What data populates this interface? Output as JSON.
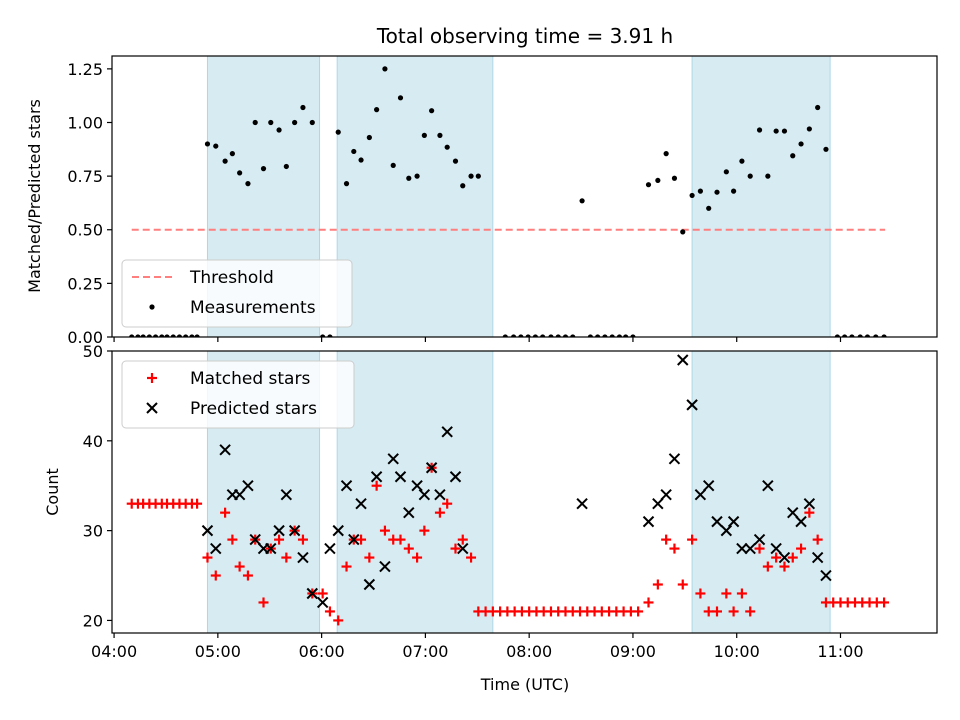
{
  "chart_data": [
    {
      "type": "scatter",
      "title": "Total observing time = 3.91 h",
      "ylabel": "Matched/Predicted stars",
      "xlabel": "",
      "ylim": [
        0,
        1.31
      ],
      "yticks": [
        "0.00",
        "0.25",
        "0.50",
        "0.75",
        "1.00",
        "1.25"
      ],
      "xlim": [
        3.98,
        11.93
      ],
      "x_ticks": [
        4,
        5,
        6,
        7,
        8,
        9,
        10,
        11
      ],
      "legend": {
        "placement": "lower-left",
        "entries": [
          "Threshold",
          "Measurements"
        ]
      },
      "threshold": {
        "name": "Threshold",
        "value": 0.5,
        "x_range": [
          4.17,
          11.43
        ],
        "color": "#ff7f7f"
      },
      "shaded_intervals": [
        [
          4.9,
          5.98
        ],
        [
          6.15,
          7.65
        ],
        [
          9.57,
          10.9
        ]
      ],
      "series": [
        {
          "name": "Measurements",
          "color": "#000000",
          "points": [
            [
              4.17,
              0
            ],
            [
              4.23,
              0
            ],
            [
              4.28,
              0
            ],
            [
              4.34,
              0
            ],
            [
              4.4,
              0
            ],
            [
              4.46,
              0
            ],
            [
              4.51,
              0
            ],
            [
              4.57,
              0
            ],
            [
              4.63,
              0
            ],
            [
              4.69,
              0
            ],
            [
              4.75,
              0
            ],
            [
              4.8,
              0
            ],
            [
              4.9,
              0.9
            ],
            [
              4.98,
              0.89
            ],
            [
              5.07,
              0.82
            ],
            [
              5.14,
              0.855
            ],
            [
              5.21,
              0.765
            ],
            [
              5.29,
              0.715
            ],
            [
              5.36,
              1.0
            ],
            [
              5.44,
              0.785
            ],
            [
              5.51,
              1.0
            ],
            [
              5.59,
              0.965
            ],
            [
              5.66,
              0.795
            ],
            [
              5.74,
              1.0
            ],
            [
              5.82,
              1.07
            ],
            [
              5.91,
              1.0
            ],
            [
              6.01,
              0
            ],
            [
              6.08,
              0
            ],
            [
              6.16,
              0.955
            ],
            [
              6.24,
              0.715
            ],
            [
              6.31,
              0.865
            ],
            [
              6.38,
              0.825
            ],
            [
              6.46,
              0.93
            ],
            [
              6.53,
              1.06
            ],
            [
              6.61,
              1.25
            ],
            [
              6.69,
              0.8
            ],
            [
              6.76,
              1.115
            ],
            [
              6.84,
              0.74
            ],
            [
              6.92,
              0.75
            ],
            [
              6.99,
              0.94
            ],
            [
              7.06,
              1.055
            ],
            [
              7.14,
              0.94
            ],
            [
              7.21,
              0.885
            ],
            [
              7.29,
              0.82
            ],
            [
              7.36,
              0.705
            ],
            [
              7.44,
              0.75
            ],
            [
              7.51,
              0.75
            ],
            [
              7.77,
              0
            ],
            [
              7.85,
              0
            ],
            [
              7.92,
              0
            ],
            [
              7.99,
              0
            ],
            [
              8.06,
              0
            ],
            [
              8.13,
              0
            ],
            [
              8.21,
              0
            ],
            [
              8.28,
              0
            ],
            [
              8.35,
              0
            ],
            [
              8.42,
              0
            ],
            [
              8.51,
              0.635
            ],
            [
              8.59,
              0
            ],
            [
              8.66,
              0
            ],
            [
              8.73,
              0
            ],
            [
              8.8,
              0
            ],
            [
              8.87,
              0
            ],
            [
              8.93,
              0
            ],
            [
              9.0,
              0
            ],
            [
              9.15,
              0.71
            ],
            [
              9.24,
              0.73
            ],
            [
              9.32,
              0.855
            ],
            [
              9.4,
              0.74
            ],
            [
              9.48,
              0.49
            ],
            [
              9.57,
              0.66
            ],
            [
              9.65,
              0.68
            ],
            [
              9.73,
              0.6
            ],
            [
              9.81,
              0.675
            ],
            [
              9.9,
              0.77
            ],
            [
              9.97,
              0.68
            ],
            [
              10.05,
              0.82
            ],
            [
              10.13,
              0.75
            ],
            [
              10.22,
              0.965
            ],
            [
              10.3,
              0.75
            ],
            [
              10.38,
              0.96
            ],
            [
              10.46,
              0.96
            ],
            [
              10.54,
              0.845
            ],
            [
              10.62,
              0.9
            ],
            [
              10.7,
              0.97
            ],
            [
              10.78,
              1.07
            ],
            [
              10.86,
              0.875
            ],
            [
              10.97,
              0
            ],
            [
              11.04,
              0
            ],
            [
              11.11,
              0
            ],
            [
              11.19,
              0
            ],
            [
              11.26,
              0
            ],
            [
              11.34,
              0
            ],
            [
              11.42,
              0
            ]
          ]
        }
      ]
    },
    {
      "type": "scatter",
      "title": "",
      "xlabel": "Time (UTC)",
      "ylabel": "Count",
      "ylim": [
        18.6,
        50
      ],
      "yticks": [
        "20",
        "30",
        "40",
        "50"
      ],
      "xlim": [
        3.98,
        11.93
      ],
      "x_ticks": [
        4,
        5,
        6,
        7,
        8,
        9,
        10,
        11
      ],
      "x_tick_labels": [
        "04:00",
        "05:00",
        "06:00",
        "07:00",
        "08:00",
        "09:00",
        "10:00",
        "11:00"
      ],
      "legend": {
        "placement": "top-left",
        "entries": [
          "Matched stars",
          "Predicted stars"
        ]
      },
      "shaded_intervals": [
        [
          4.9,
          5.98
        ],
        [
          6.15,
          7.65
        ],
        [
          9.57,
          10.9
        ]
      ],
      "series": [
        {
          "name": "Matched stars",
          "marker": "plus",
          "color": "#ff0000",
          "points": [
            [
              4.17,
              33
            ],
            [
              4.23,
              33
            ],
            [
              4.28,
              33
            ],
            [
              4.34,
              33
            ],
            [
              4.4,
              33
            ],
            [
              4.46,
              33
            ],
            [
              4.51,
              33
            ],
            [
              4.57,
              33
            ],
            [
              4.63,
              33
            ],
            [
              4.69,
              33
            ],
            [
              4.75,
              33
            ],
            [
              4.8,
              33
            ],
            [
              4.9,
              27
            ],
            [
              4.98,
              25
            ],
            [
              5.07,
              32
            ],
            [
              5.14,
              29
            ],
            [
              5.21,
              26
            ],
            [
              5.29,
              25
            ],
            [
              5.36,
              29
            ],
            [
              5.44,
              22
            ],
            [
              5.51,
              28
            ],
            [
              5.59,
              29
            ],
            [
              5.66,
              27
            ],
            [
              5.74,
              30
            ],
            [
              5.82,
              29
            ],
            [
              5.91,
              23
            ],
            [
              6.01,
              23
            ],
            [
              6.08,
              21
            ],
            [
              6.16,
              20
            ],
            [
              6.24,
              26
            ],
            [
              6.31,
              29
            ],
            [
              6.38,
              29
            ],
            [
              6.46,
              27
            ],
            [
              6.53,
              35
            ],
            [
              6.61,
              30
            ],
            [
              6.69,
              29
            ],
            [
              6.76,
              29
            ],
            [
              6.84,
              28
            ],
            [
              6.92,
              27
            ],
            [
              6.99,
              30
            ],
            [
              7.06,
              37
            ],
            [
              7.14,
              32
            ],
            [
              7.21,
              33
            ],
            [
              7.29,
              28
            ],
            [
              7.36,
              29
            ],
            [
              7.44,
              27
            ],
            [
              7.51,
              21
            ],
            [
              7.58,
              21
            ],
            [
              7.65,
              21
            ],
            [
              7.72,
              21
            ],
            [
              7.79,
              21
            ],
            [
              7.86,
              21
            ],
            [
              7.93,
              21
            ],
            [
              8.0,
              21
            ],
            [
              8.07,
              21
            ],
            [
              8.14,
              21
            ],
            [
              8.21,
              21
            ],
            [
              8.28,
              21
            ],
            [
              8.35,
              21
            ],
            [
              8.42,
              21
            ],
            [
              8.49,
              21
            ],
            [
              8.56,
              21
            ],
            [
              8.63,
              21
            ],
            [
              8.7,
              21
            ],
            [
              8.77,
              21
            ],
            [
              8.84,
              21
            ],
            [
              8.91,
              21
            ],
            [
              8.98,
              21
            ],
            [
              9.05,
              21
            ],
            [
              9.15,
              22
            ],
            [
              9.24,
              24
            ],
            [
              9.32,
              29
            ],
            [
              9.4,
              28
            ],
            [
              9.48,
              24
            ],
            [
              9.57,
              29
            ],
            [
              9.65,
              23
            ],
            [
              9.73,
              21
            ],
            [
              9.81,
              21
            ],
            [
              9.9,
              23
            ],
            [
              9.97,
              21
            ],
            [
              10.05,
              23
            ],
            [
              10.13,
              21
            ],
            [
              10.22,
              28
            ],
            [
              10.3,
              26
            ],
            [
              10.38,
              27
            ],
            [
              10.46,
              26
            ],
            [
              10.54,
              27
            ],
            [
              10.62,
              28
            ],
            [
              10.7,
              32
            ],
            [
              10.78,
              29
            ],
            [
              10.86,
              22
            ],
            [
              10.93,
              22
            ],
            [
              11.0,
              22
            ],
            [
              11.07,
              22
            ],
            [
              11.14,
              22
            ],
            [
              11.21,
              22
            ],
            [
              11.28,
              22
            ],
            [
              11.35,
              22
            ],
            [
              11.42,
              22
            ]
          ]
        },
        {
          "name": "Predicted stars",
          "marker": "x",
          "color": "#000000",
          "points": [
            [
              4.9,
              30
            ],
            [
              4.98,
              28
            ],
            [
              5.07,
              39
            ],
            [
              5.14,
              34
            ],
            [
              5.21,
              34
            ],
            [
              5.29,
              35
            ],
            [
              5.36,
              29
            ],
            [
              5.44,
              28
            ],
            [
              5.51,
              28
            ],
            [
              5.59,
              30
            ],
            [
              5.66,
              34
            ],
            [
              5.74,
              30
            ],
            [
              5.82,
              27
            ],
            [
              5.91,
              23
            ],
            [
              6.01,
              22
            ],
            [
              6.08,
              28
            ],
            [
              6.16,
              30
            ],
            [
              6.24,
              35
            ],
            [
              6.31,
              29
            ],
            [
              6.38,
              33
            ],
            [
              6.46,
              24
            ],
            [
              6.53,
              36
            ],
            [
              6.61,
              26
            ],
            [
              6.69,
              38
            ],
            [
              6.76,
              36
            ],
            [
              6.84,
              32
            ],
            [
              6.92,
              35
            ],
            [
              6.99,
              34
            ],
            [
              7.06,
              37
            ],
            [
              7.14,
              34
            ],
            [
              7.21,
              41
            ],
            [
              7.29,
              36
            ],
            [
              7.36,
              28
            ],
            [
              8.51,
              33
            ],
            [
              9.15,
              31
            ],
            [
              9.24,
              33
            ],
            [
              9.32,
              34
            ],
            [
              9.4,
              38
            ],
            [
              9.48,
              49
            ],
            [
              9.57,
              44
            ],
            [
              9.65,
              34
            ],
            [
              9.73,
              35
            ],
            [
              9.81,
              31
            ],
            [
              9.9,
              30
            ],
            [
              9.97,
              31
            ],
            [
              10.05,
              28
            ],
            [
              10.13,
              28
            ],
            [
              10.22,
              29
            ],
            [
              10.3,
              35
            ],
            [
              10.38,
              28
            ],
            [
              10.46,
              27
            ],
            [
              10.54,
              32
            ],
            [
              10.62,
              31
            ],
            [
              10.7,
              33
            ],
            [
              10.78,
              27
            ],
            [
              10.86,
              25
            ]
          ]
        }
      ]
    }
  ]
}
